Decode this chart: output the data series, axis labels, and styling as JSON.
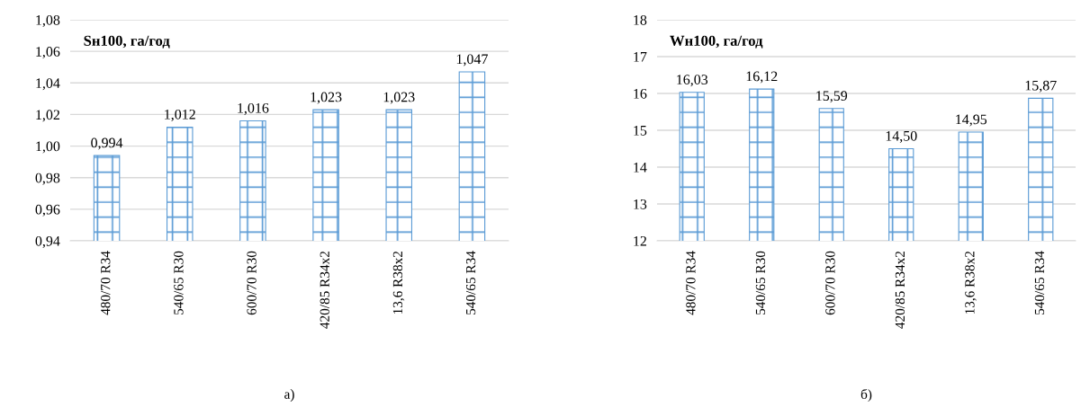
{
  "chart_data": [
    {
      "type": "bar",
      "title": "Sн100, га/год",
      "categories": [
        "480/70 R34",
        "540/65 R30",
        "600/70 R30",
        "420/85 R34x2",
        "13,6 R38x2",
        "540/65 R34"
      ],
      "values": [
        0.994,
        1.012,
        1.016,
        1.023,
        1.023,
        1.047
      ],
      "value_labels": [
        "0,994",
        "1,012",
        "1,016",
        "1,023",
        "1,023",
        "1,047"
      ],
      "color": "#5b9bd5",
      "ylim": [
        0.94,
        1.08
      ],
      "yticks": [
        {
          "value": 0.94,
          "label": "0,94"
        },
        {
          "value": 0.96,
          "label": "0,96"
        },
        {
          "value": 0.98,
          "label": "0,98"
        },
        {
          "value": 1.0,
          "label": "1,00"
        },
        {
          "value": 1.02,
          "label": "1,02"
        },
        {
          "value": 1.04,
          "label": "1,04"
        },
        {
          "value": 1.06,
          "label": "1,06"
        },
        {
          "value": 1.08,
          "label": "1,08"
        }
      ],
      "grid": "y",
      "annotations": [
        "а)"
      ]
    },
    {
      "type": "bar",
      "title": "Wн100, га/год",
      "categories": [
        "480/70 R34",
        "540/65 R30",
        "600/70 R30",
        "420/85 R34x2",
        "13,6 R38x2",
        "540/65 R34"
      ],
      "values": [
        16.03,
        16.12,
        15.59,
        14.5,
        14.95,
        15.87
      ],
      "value_labels": [
        "16,03",
        "16,12",
        "15,59",
        "14,50",
        "14,95",
        "15,87"
      ],
      "color": "#5b9bd5",
      "ylim": [
        12,
        18
      ],
      "yticks": [
        12,
        13,
        14,
        15,
        16,
        17,
        18
      ],
      "grid": "y",
      "annotations": [
        "б)"
      ]
    }
  ]
}
